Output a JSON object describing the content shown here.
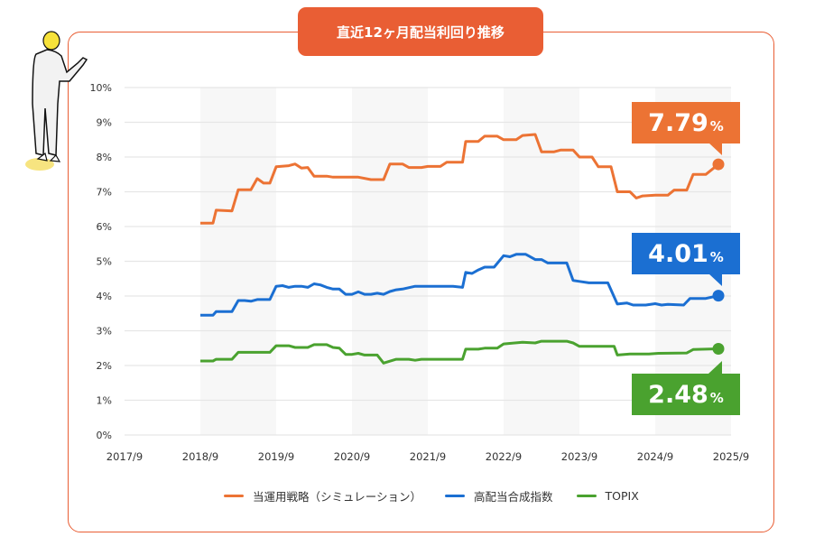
{
  "title": "直近12ヶ月配当利回り推移",
  "chart_data": {
    "type": "line",
    "title": "直近12ヶ月配当利回り推移",
    "x_unit": "months since 2017/9",
    "x_ticks": [
      "2017/9",
      "2018/9",
      "2019/9",
      "2020/9",
      "2021/9",
      "2022/9",
      "2023/9",
      "2024/9",
      "2025/9"
    ],
    "y_ticks": [
      "0%",
      "1%",
      "2%",
      "3%",
      "4%",
      "5%",
      "6%",
      "7%",
      "8%",
      "9%",
      "10%"
    ],
    "ylim": [
      0,
      10
    ],
    "xlim": [
      0,
      96
    ],
    "grid": true,
    "legend_position": "bottom",
    "series": [
      {
        "name": "当運用戦略（シミュレーション）",
        "color": "#ec7334",
        "last_value": "7.79",
        "points": [
          [
            12,
            6.1
          ],
          [
            14,
            6.1
          ],
          [
            14.5,
            6.47
          ],
          [
            17,
            6.45
          ],
          [
            18,
            7.06
          ],
          [
            20,
            7.06
          ],
          [
            21,
            7.38
          ],
          [
            22,
            7.25
          ],
          [
            23,
            7.25
          ],
          [
            24,
            7.72
          ],
          [
            26,
            7.75
          ],
          [
            27,
            7.8
          ],
          [
            28,
            7.68
          ],
          [
            29,
            7.7
          ],
          [
            30,
            7.45
          ],
          [
            32,
            7.45
          ],
          [
            33,
            7.42
          ],
          [
            37,
            7.42
          ],
          [
            39,
            7.35
          ],
          [
            41,
            7.35
          ],
          [
            42,
            7.8
          ],
          [
            44,
            7.8
          ],
          [
            45,
            7.7
          ],
          [
            47,
            7.7
          ],
          [
            48,
            7.73
          ],
          [
            50,
            7.73
          ],
          [
            51,
            7.85
          ],
          [
            53.5,
            7.85
          ],
          [
            54,
            8.45
          ],
          [
            56,
            8.45
          ],
          [
            57,
            8.6
          ],
          [
            59,
            8.6
          ],
          [
            60,
            8.5
          ],
          [
            62,
            8.5
          ],
          [
            63,
            8.62
          ],
          [
            65,
            8.65
          ],
          [
            66,
            8.15
          ],
          [
            68,
            8.15
          ],
          [
            69,
            8.2
          ],
          [
            71,
            8.2
          ],
          [
            72,
            8.0
          ],
          [
            74,
            8.0
          ],
          [
            75,
            7.72
          ],
          [
            77,
            7.72
          ],
          [
            78,
            7.0
          ],
          [
            80,
            7.0
          ],
          [
            81,
            6.82
          ],
          [
            82,
            6.88
          ],
          [
            84,
            6.9
          ],
          [
            86,
            6.9
          ],
          [
            87,
            7.05
          ],
          [
            89,
            7.05
          ],
          [
            90,
            7.5
          ],
          [
            92,
            7.5
          ],
          [
            94,
            7.79
          ]
        ]
      },
      {
        "name": "高配当合成指数",
        "color": "#1b6fd2",
        "last_value": "4.01",
        "points": [
          [
            12,
            3.45
          ],
          [
            14,
            3.45
          ],
          [
            14.5,
            3.55
          ],
          [
            17,
            3.55
          ],
          [
            18,
            3.87
          ],
          [
            19,
            3.87
          ],
          [
            20,
            3.85
          ],
          [
            21,
            3.9
          ],
          [
            23,
            3.9
          ],
          [
            24,
            4.28
          ],
          [
            25,
            4.3
          ],
          [
            26,
            4.25
          ],
          [
            27,
            4.28
          ],
          [
            28,
            4.28
          ],
          [
            29,
            4.25
          ],
          [
            30,
            4.35
          ],
          [
            31,
            4.32
          ],
          [
            32,
            4.25
          ],
          [
            33,
            4.2
          ],
          [
            34,
            4.2
          ],
          [
            35,
            4.05
          ],
          [
            36,
            4.05
          ],
          [
            37,
            4.12
          ],
          [
            38,
            4.05
          ],
          [
            39,
            4.05
          ],
          [
            40,
            4.08
          ],
          [
            41,
            4.05
          ],
          [
            42,
            4.13
          ],
          [
            43,
            4.18
          ],
          [
            44,
            4.2
          ],
          [
            46,
            4.28
          ],
          [
            52,
            4.28
          ],
          [
            53.5,
            4.25
          ],
          [
            54,
            4.68
          ],
          [
            55,
            4.65
          ],
          [
            56,
            4.75
          ],
          [
            57,
            4.83
          ],
          [
            58.5,
            4.83
          ],
          [
            60,
            5.16
          ],
          [
            61,
            5.13
          ],
          [
            62,
            5.2
          ],
          [
            63.5,
            5.2
          ],
          [
            64,
            5.15
          ],
          [
            65,
            5.05
          ],
          [
            66,
            5.05
          ],
          [
            67,
            4.95
          ],
          [
            70,
            4.95
          ],
          [
            71,
            4.45
          ],
          [
            72,
            4.42
          ],
          [
            73.5,
            4.38
          ],
          [
            76.5,
            4.38
          ],
          [
            78,
            3.77
          ],
          [
            79.5,
            3.8
          ],
          [
            80.5,
            3.74
          ],
          [
            82.5,
            3.74
          ],
          [
            84,
            3.78
          ],
          [
            85,
            3.74
          ],
          [
            86,
            3.76
          ],
          [
            88.5,
            3.74
          ],
          [
            89.5,
            3.93
          ],
          [
            92,
            3.93
          ],
          [
            94,
            4.01
          ]
        ]
      },
      {
        "name": "TOPIX",
        "color": "#4aa22f",
        "last_value": "2.48",
        "points": [
          [
            12,
            2.13
          ],
          [
            14,
            2.13
          ],
          [
            14.5,
            2.18
          ],
          [
            17,
            2.18
          ],
          [
            18,
            2.38
          ],
          [
            23,
            2.38
          ],
          [
            24,
            2.57
          ],
          [
            26,
            2.57
          ],
          [
            27,
            2.52
          ],
          [
            29,
            2.52
          ],
          [
            30,
            2.6
          ],
          [
            32,
            2.6
          ],
          [
            33,
            2.52
          ],
          [
            34,
            2.5
          ],
          [
            35,
            2.32
          ],
          [
            36,
            2.32
          ],
          [
            37,
            2.35
          ],
          [
            38,
            2.3
          ],
          [
            40,
            2.3
          ],
          [
            41,
            2.07
          ],
          [
            43,
            2.18
          ],
          [
            45,
            2.18
          ],
          [
            46,
            2.15
          ],
          [
            47,
            2.18
          ],
          [
            53.5,
            2.18
          ],
          [
            54,
            2.47
          ],
          [
            56,
            2.47
          ],
          [
            57,
            2.5
          ],
          [
            59,
            2.5
          ],
          [
            60,
            2.62
          ],
          [
            63,
            2.67
          ],
          [
            65,
            2.65
          ],
          [
            66,
            2.7
          ],
          [
            70,
            2.7
          ],
          [
            71,
            2.65
          ],
          [
            72,
            2.55
          ],
          [
            77.5,
            2.55
          ],
          [
            78,
            2.3
          ],
          [
            80,
            2.33
          ],
          [
            83,
            2.33
          ],
          [
            84.5,
            2.35
          ],
          [
            89,
            2.36
          ],
          [
            90,
            2.46
          ],
          [
            94,
            2.48
          ]
        ]
      }
    ],
    "percent_sign": "%"
  }
}
